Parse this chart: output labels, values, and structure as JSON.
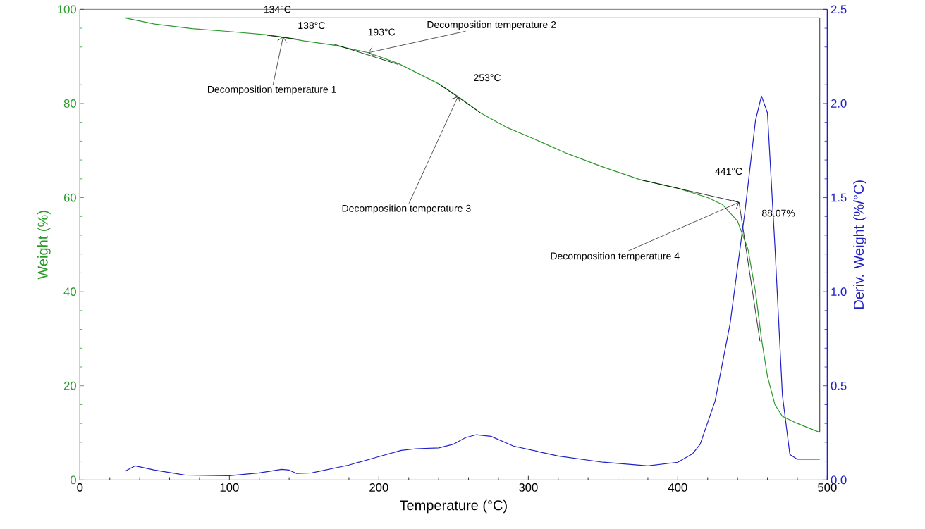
{
  "chart_data": {
    "type": "line",
    "xlabel": "Temperature (°C)",
    "ylabel": "Weight (%)",
    "y2label": "Deriv. Weight (%/°C)",
    "xlim": [
      0,
      500
    ],
    "xticks": [
      0,
      100,
      200,
      300,
      400,
      500
    ],
    "ylim": [
      0,
      100
    ],
    "yticks": [
      0,
      20,
      40,
      60,
      80,
      100
    ],
    "y2lim": [
      0,
      2.5
    ],
    "y2ticks": [
      {
        "value": 0,
        "label": "0.0"
      },
      {
        "value": 0.5,
        "label": "0.5"
      },
      {
        "value": 1,
        "label": "1.0"
      },
      {
        "value": 1.5,
        "label": "1.5"
      },
      {
        "value": 2,
        "label": "2.0"
      },
      {
        "value": 2.5,
        "label": "2.5"
      }
    ],
    "grid": false,
    "series": [
      {
        "color": "#2a9a2a",
        "x": [
          30,
          50,
          75,
          100,
          125,
          134,
          150,
          170,
          193,
          213,
          240,
          253,
          268,
          285,
          300,
          325,
          350,
          375,
          400,
          420,
          430,
          440,
          447,
          452,
          456,
          460,
          465,
          470,
          480,
          495
        ],
        "values": [
          98.2,
          96.9,
          95.9,
          95.3,
          94.6,
          94.2,
          93.3,
          92.4,
          90.8,
          88.5,
          84.2,
          81.5,
          78,
          75,
          73,
          69.5,
          66.5,
          63.8,
          62,
          60,
          58.5,
          55,
          49,
          40,
          30,
          22,
          16,
          13.5,
          12,
          10.1
        ]
      },
      {
        "color": "#2020c8",
        "axis": "y2",
        "x": [
          30,
          37,
          50,
          70,
          100,
          120,
          135,
          140,
          145,
          155,
          180,
          200,
          215,
          225,
          240,
          250,
          258,
          265,
          275,
          290,
          320,
          350,
          380,
          400,
          410,
          415,
          425,
          435,
          445,
          452,
          456,
          460,
          465,
          470,
          475,
          480,
          495
        ],
        "values": [
          0.045,
          0.075,
          0.052,
          0.026,
          0.022,
          0.037,
          0.056,
          0.052,
          0.034,
          0.037,
          0.079,
          0.124,
          0.157,
          0.166,
          0.17,
          0.19,
          0.225,
          0.24,
          0.232,
          0.18,
          0.127,
          0.094,
          0.075,
          0.094,
          0.14,
          0.19,
          0.42,
          0.83,
          1.43,
          1.91,
          2.04,
          1.95,
          1.24,
          0.45,
          0.135,
          0.11,
          0.11
        ]
      },
      {
        "color": "#000000",
        "x": [
          125,
          145
        ],
        "values": [
          94.5,
          93.7
        ]
      },
      {
        "color": "#000000",
        "x": [
          170,
          213
        ],
        "values": [
          92.6,
          88.3
        ]
      },
      {
        "color": "#000000",
        "x": [
          240,
          268
        ],
        "values": [
          84.2,
          78
        ]
      },
      {
        "color": "#000000",
        "x": [
          375,
          441
        ],
        "values": [
          63.8,
          59
        ]
      },
      {
        "color": "#000000",
        "x": [
          441,
          455
        ],
        "values": [
          59,
          29.5
        ]
      },
      {
        "color": "#000000",
        "x": [
          30,
          495
        ],
        "values": [
          98.2,
          98.2
        ]
      },
      {
        "color": "#000000",
        "x": [
          495,
          495
        ],
        "values": [
          98.2,
          10.1
        ]
      }
    ],
    "annotations": [
      {
        "text": "134°C",
        "x": 134,
        "y": 94.2
      },
      {
        "text": "138°C",
        "x": 138,
        "y": 94
      },
      {
        "text": "193°C",
        "x": 193,
        "y": 90.8
      },
      {
        "text": "253°C",
        "x": 253,
        "y": 81.5
      },
      {
        "text": "441°C",
        "x": 441,
        "y": 59
      },
      {
        "text": "88.07%",
        "x": 495,
        "y": 56.7
      },
      {
        "text": "Decomposition temperature 1",
        "x": 136,
        "y": 94.2
      },
      {
        "text": "Decomposition temperature 2",
        "x": 193,
        "y": 90.8
      },
      {
        "text": "Decomposition temperature 3",
        "x": 253,
        "y": 81.5
      },
      {
        "text": "Decomposition temperature 4",
        "x": 441,
        "y": 59
      }
    ]
  }
}
